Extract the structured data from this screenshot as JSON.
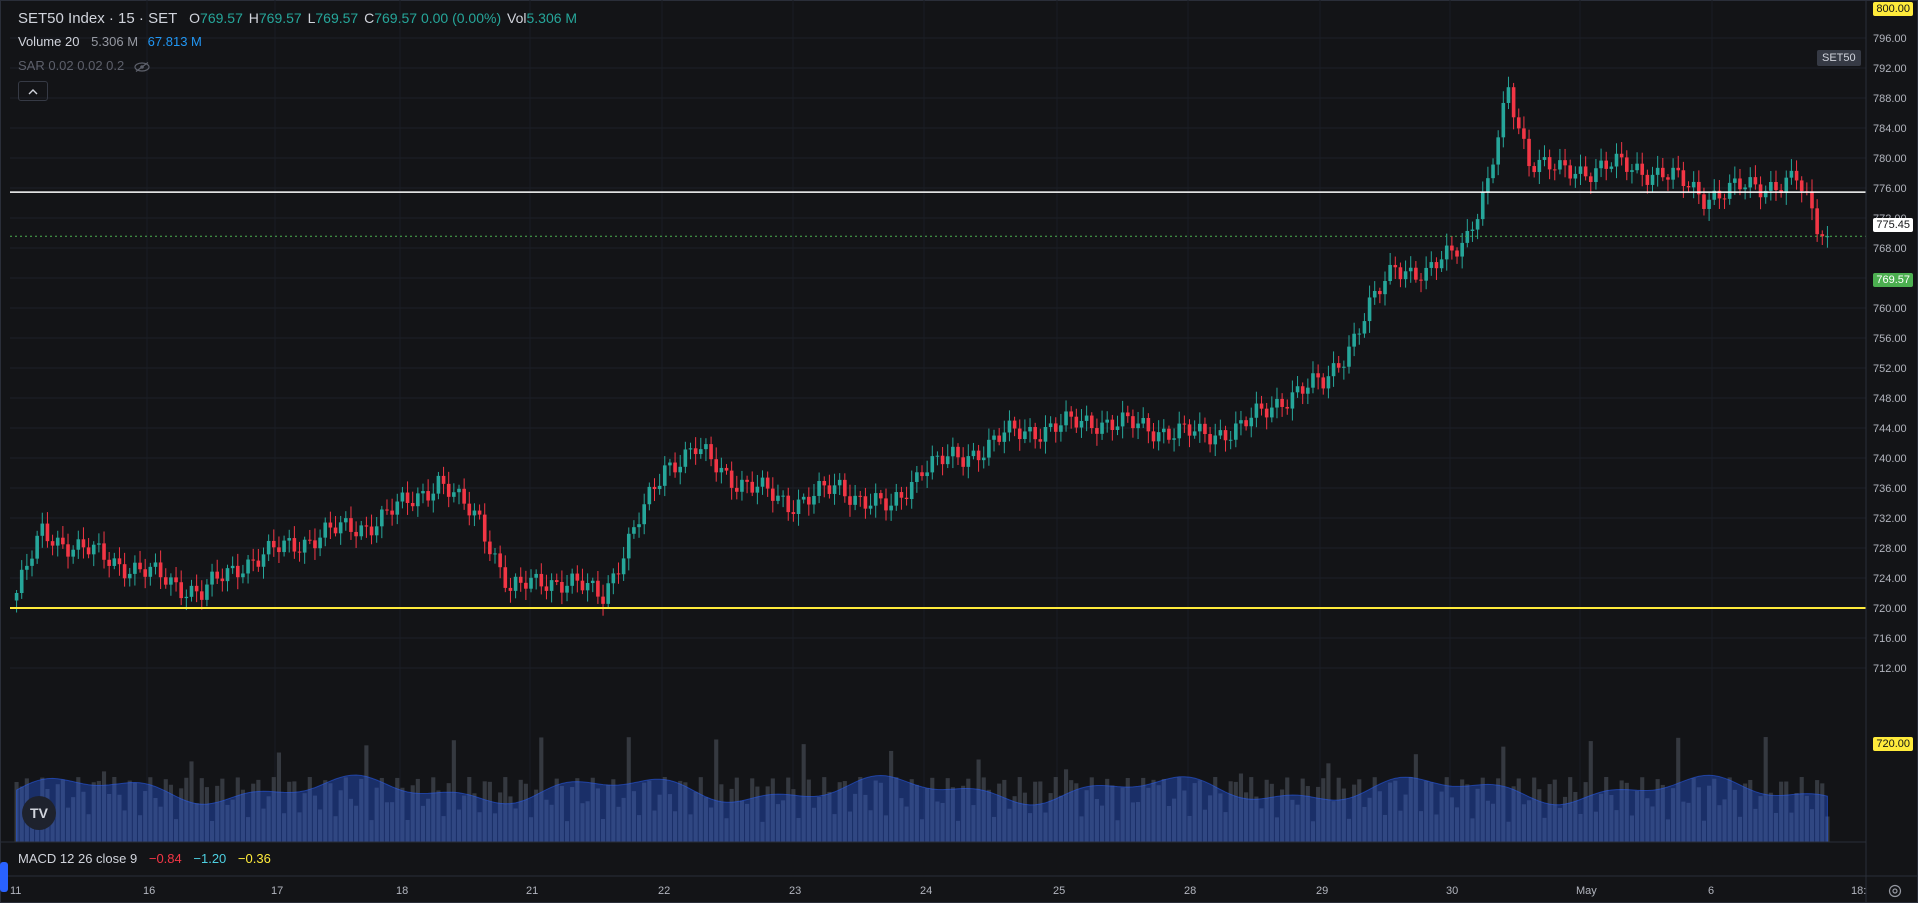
{
  "legend": {
    "title": "SET50 Index · 15 · SET",
    "o_key": "O",
    "o_val": "769.57",
    "h_key": "H",
    "h_val": "769.57",
    "l_key": "L",
    "l_val": "769.57",
    "c_key": "C",
    "c_val": "769.57",
    "change": "0.00 (0.00%)",
    "vol_key": "Vol",
    "vol_val": "5.306 M"
  },
  "indicators": {
    "volume": {
      "name": "Volume 20",
      "value": "5.306 M",
      "ma": "67.813 M"
    },
    "sar": {
      "name": "SAR 0.02 0.02 0.2"
    },
    "macd": {
      "name": "MACD 12 26 close 9",
      "macd": "−0.84",
      "signal": "−1.20",
      "hist": "−0.36"
    }
  },
  "symbol_tag": "SET50",
  "price_labels": {
    "top": "800.00",
    "line_white": "775.45",
    "last": "769.57",
    "line_yellow": "720.00"
  },
  "colors": {
    "up": "#26a69a",
    "down": "#f23645",
    "volume_ma": "#2962ff",
    "hline_white": "#ffffff",
    "hline_yellow": "#ffeb3b"
  },
  "chart_data": {
    "type": "candlestick",
    "y_axis": {
      "ylim": [
        710,
        800
      ],
      "ticks": [
        "796.00",
        "792.00",
        "788.00",
        "784.00",
        "780.00",
        "776.00",
        "772.00",
        "768.00",
        "764.00",
        "760.00",
        "756.00",
        "752.00",
        "748.00",
        "744.00",
        "740.00",
        "736.00",
        "732.00",
        "728.00",
        "724.00",
        "720.00",
        "716.00",
        "712.00"
      ]
    },
    "x_axis": {
      "ticks": [
        "11",
        "16",
        "17",
        "18",
        "21",
        "22",
        "23",
        "24",
        "25",
        "28",
        "29",
        "30",
        "May",
        "6",
        "18:"
      ]
    },
    "horizontal_lines": [
      {
        "value": 775.45,
        "color": "#ffffff"
      },
      {
        "value": 720.0,
        "color": "#ffeb3b"
      }
    ],
    "last_price": 769.57,
    "anchors": [
      [
        0,
        722
      ],
      [
        5,
        730
      ],
      [
        12,
        728
      ],
      [
        20,
        726
      ],
      [
        28,
        724
      ],
      [
        36,
        722
      ],
      [
        44,
        726
      ],
      [
        52,
        728
      ],
      [
        60,
        730
      ],
      [
        68,
        731
      ],
      [
        76,
        734
      ],
      [
        82,
        737
      ],
      [
        86,
        734
      ],
      [
        90,
        732
      ],
      [
        96,
        722
      ],
      [
        102,
        724
      ],
      [
        108,
        723
      ],
      [
        114,
        722
      ],
      [
        120,
        730
      ],
      [
        126,
        739
      ],
      [
        132,
        741
      ],
      [
        140,
        737
      ],
      [
        150,
        734
      ],
      [
        160,
        736
      ],
      [
        170,
        733
      ],
      [
        176,
        739
      ],
      [
        184,
        740
      ],
      [
        192,
        743
      ],
      [
        200,
        744
      ],
      [
        210,
        745
      ],
      [
        220,
        744
      ],
      [
        230,
        743
      ],
      [
        238,
        744
      ],
      [
        246,
        748
      ],
      [
        254,
        750
      ],
      [
        260,
        756
      ],
      [
        268,
        766
      ],
      [
        274,
        764
      ],
      [
        282,
        770
      ],
      [
        286,
        776
      ],
      [
        290,
        789
      ],
      [
        294,
        780
      ],
      [
        300,
        778
      ],
      [
        310,
        779
      ],
      [
        320,
        778
      ],
      [
        328,
        775
      ],
      [
        336,
        776
      ],
      [
        346,
        777
      ],
      [
        350,
        771
      ],
      [
        352,
        769.57
      ]
    ]
  }
}
